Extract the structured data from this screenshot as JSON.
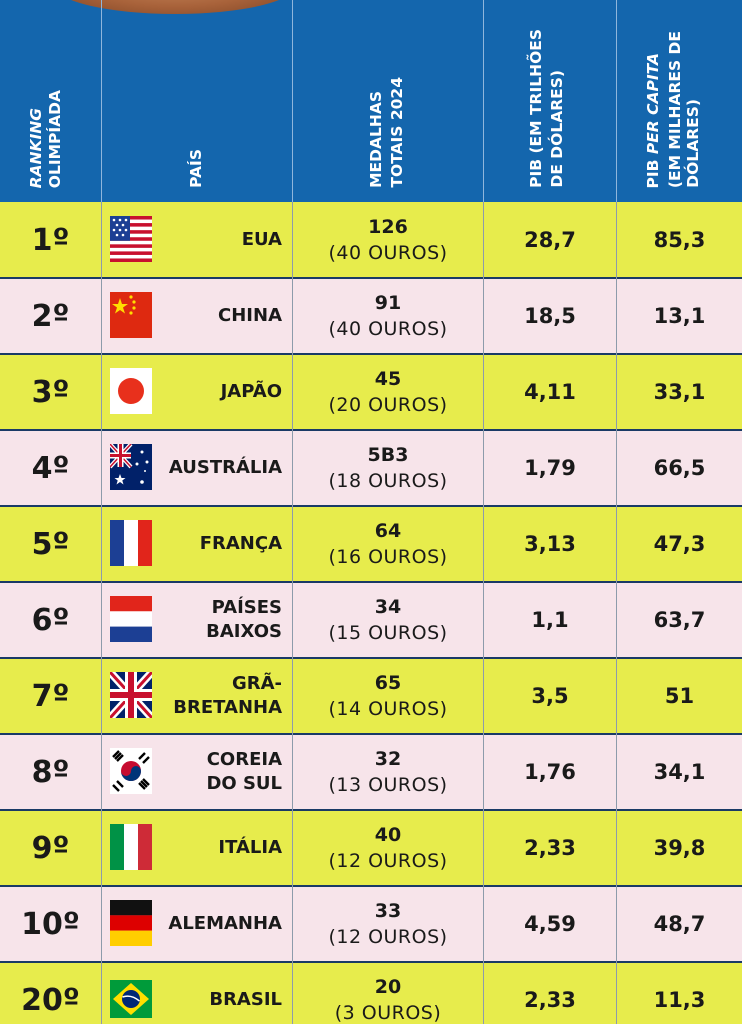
{
  "header": {
    "col1_line1": "RANKING",
    "col1_line2": "OLIMPÍADA",
    "col2": "PAÍS",
    "col3_line1": "MEDALHAS",
    "col3_line2": "TOTAIS 2024",
    "col4_line1": "PIB (EM TRILHÕES",
    "col4_line2": "DE DÓLARES)",
    "col5_line1a": "PIB ",
    "col5_line1b": "PER CAPITA",
    "col5_line2": "(EM MILHARES DE",
    "col5_line3": "DÓLARES)"
  },
  "rows": [
    {
      "rank": "1º",
      "country_line1": "EUA",
      "country_line2": "",
      "flag": "usa-flag",
      "medals": "126",
      "golds": "(40 OUROS)",
      "pib": "28,7",
      "pib_pc": "85,3"
    },
    {
      "rank": "2º",
      "country_line1": "CHINA",
      "country_line2": "",
      "flag": "china-flag",
      "medals": "91",
      "golds": "(40 OUROS)",
      "pib": "18,5",
      "pib_pc": "13,1"
    },
    {
      "rank": "3º",
      "country_line1": "JAPÃO",
      "country_line2": "",
      "flag": "japan-flag",
      "medals": "45",
      "golds": "(20 OUROS)",
      "pib": "4,11",
      "pib_pc": "33,1"
    },
    {
      "rank": "4º",
      "country_line1": "AUSTRÁLIA",
      "country_line2": "",
      "flag": "australia-flag",
      "medals": "5B3",
      "golds": "(18 OUROS)",
      "pib": "1,79",
      "pib_pc": "66,5"
    },
    {
      "rank": "5º",
      "country_line1": "FRANÇA",
      "country_line2": "",
      "flag": "france-flag",
      "medals": "64",
      "golds": "(16 OUROS)",
      "pib": "3,13",
      "pib_pc": "47,3"
    },
    {
      "rank": "6º",
      "country_line1": "PAÍSES",
      "country_line2": "BAIXOS",
      "flag": "netherlands-flag",
      "medals": "34",
      "golds": "(15 OUROS)",
      "pib": "1,1",
      "pib_pc": "63,7"
    },
    {
      "rank": "7º",
      "country_line1": "GRÃ-",
      "country_line2": "BRETANHA",
      "flag": "uk-flag",
      "medals": "65",
      "golds": "(14 OUROS)",
      "pib": "3,5",
      "pib_pc": "51"
    },
    {
      "rank": "8º",
      "country_line1": "COREIA",
      "country_line2": "DO SUL",
      "flag": "south-korea-flag",
      "medals": "32",
      "golds": "(13 OUROS)",
      "pib": "1,76",
      "pib_pc": "34,1"
    },
    {
      "rank": "9º",
      "country_line1": "ITÁLIA",
      "country_line2": "",
      "flag": "italy-flag",
      "medals": "40",
      "golds": "(12 OUROS)",
      "pib": "2,33",
      "pib_pc": "39,8"
    },
    {
      "rank": "10º",
      "country_line1": "ALEMANHA",
      "country_line2": "",
      "flag": "germany-flag",
      "medals": "33",
      "golds": "(12 OUROS)",
      "pib": "4,59",
      "pib_pc": "48,7"
    },
    {
      "rank": "20º",
      "country_line1": "BRASIL",
      "country_line2": "",
      "flag": "brazil-flag",
      "medals": "20",
      "golds": "(3 OUROS)",
      "pib": "2,33",
      "pib_pc": "11,3"
    }
  ],
  "colors": {
    "header_blue": "#1466ad",
    "row_yellow": "#e7ec4c",
    "row_pink": "#f7e4ea"
  }
}
